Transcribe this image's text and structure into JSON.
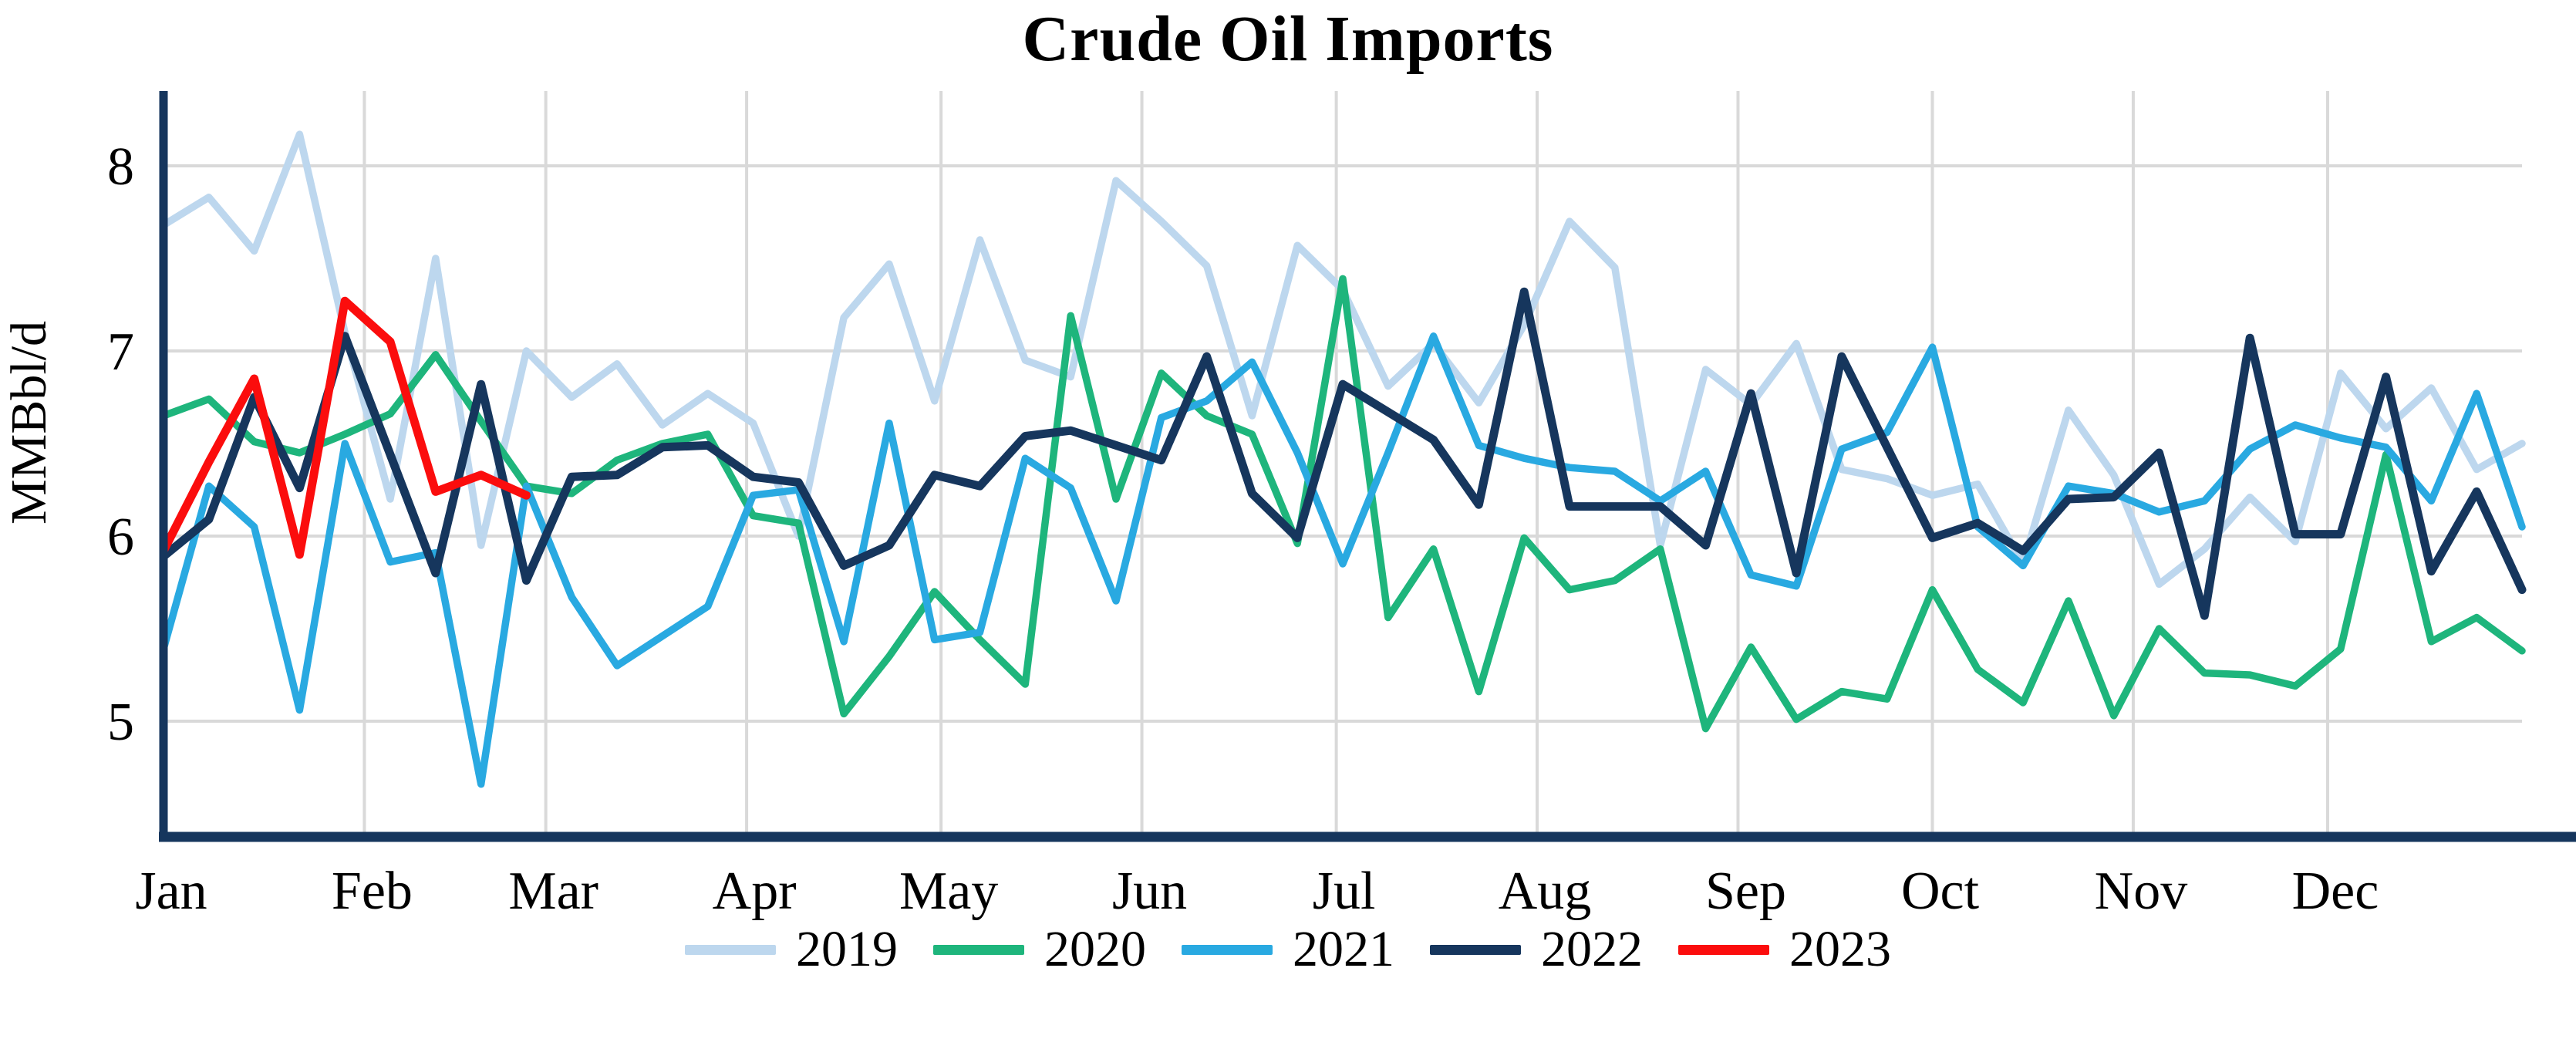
{
  "title": "Crude Oil Imports",
  "y_axis_label": "MMBbl/d",
  "colors": {
    "axis": "#16365d",
    "gridline": "#d9d9d9",
    "background": "#ffffff",
    "text": "#000000"
  },
  "chart_data": {
    "type": "line",
    "title": "Crude Oil Imports",
    "xlabel": "",
    "ylabel": "MMBbl/d",
    "x_tick_labels": [
      "Jan",
      "Feb",
      "Mar",
      "Apr",
      "May",
      "Jun",
      "Jul",
      "Aug",
      "Sep",
      "Oct",
      "Nov",
      "Dec"
    ],
    "y_ticks": [
      5,
      6,
      7,
      8
    ],
    "ylim": [
      4.37,
      8.42
    ],
    "x_unit": "weeks (one point per week, Jan 1 - Dec 31)",
    "grid": true,
    "legend_position": "bottom",
    "series": [
      {
        "name": "2019",
        "color": "#bdd7ee",
        "values": [
          7.68,
          7.83,
          7.54,
          8.17,
          7.1,
          6.2,
          7.5,
          5.95,
          7.0,
          6.75,
          6.93,
          6.6,
          6.77,
          6.61,
          6.0,
          7.18,
          7.47,
          6.73,
          7.6,
          6.95,
          6.86,
          7.92,
          7.7,
          7.46,
          6.65,
          7.57,
          7.33,
          6.81,
          7.04,
          6.72,
          7.14,
          7.7,
          7.45,
          5.95,
          6.9,
          6.71,
          7.04,
          6.36,
          6.31,
          6.22,
          6.28,
          5.85,
          6.68,
          6.33,
          5.74,
          5.93,
          6.21,
          5.97,
          6.88,
          6.58,
          6.8,
          6.36,
          6.5
        ]
      },
      {
        "name": "2020",
        "color": "#1eb57c",
        "values": [
          6.65,
          6.74,
          6.51,
          6.45,
          6.55,
          6.66,
          6.98,
          6.62,
          6.27,
          6.23,
          6.41,
          6.5,
          6.55,
          6.11,
          6.07,
          5.04,
          5.35,
          5.7,
          5.44,
          5.2,
          7.19,
          6.2,
          6.88,
          6.65,
          6.55,
          5.96,
          7.39,
          5.56,
          5.93,
          5.16,
          5.99,
          5.71,
          5.76,
          5.93,
          4.96,
          5.4,
          5.01,
          5.16,
          5.12,
          5.71,
          5.28,
          5.1,
          5.65,
          5.03,
          5.5,
          5.26,
          5.25,
          5.19,
          5.39,
          6.44,
          5.43,
          5.56,
          5.38
        ]
      },
      {
        "name": "2021",
        "color": "#29a9e1",
        "values": [
          5.39,
          6.27,
          6.05,
          5.06,
          6.5,
          5.86,
          5.91,
          4.66,
          6.27,
          5.67,
          5.3,
          5.46,
          5.62,
          6.22,
          6.25,
          5.43,
          6.61,
          5.44,
          5.48,
          6.42,
          6.26,
          5.65,
          6.64,
          6.73,
          6.94,
          6.45,
          5.85,
          6.45,
          7.08,
          6.49,
          6.42,
          6.37,
          6.35,
          6.19,
          6.35,
          5.79,
          5.73,
          6.47,
          6.56,
          7.02,
          6.05,
          5.84,
          6.27,
          6.23,
          6.13,
          6.19,
          6.47,
          6.6,
          6.53,
          6.48,
          6.19,
          6.77,
          6.05
        ]
      },
      {
        "name": "2022",
        "color": "#16365d",
        "values": [
          5.89,
          6.09,
          6.75,
          6.26,
          7.08,
          6.44,
          5.8,
          6.82,
          5.76,
          6.32,
          6.33,
          6.48,
          6.49,
          6.32,
          6.29,
          5.84,
          5.95,
          6.33,
          6.27,
          6.54,
          6.57,
          6.49,
          6.41,
          6.97,
          6.23,
          5.99,
          6.82,
          6.67,
          6.52,
          6.17,
          7.32,
          6.16,
          6.16,
          6.16,
          5.95,
          6.77,
          5.8,
          6.97,
          6.48,
          5.99,
          6.07,
          5.92,
          6.2,
          6.21,
          6.45,
          5.57,
          7.07,
          6.01,
          6.01,
          6.86,
          5.81,
          6.24,
          5.71
        ]
      },
      {
        "name": "2023",
        "color": "#fb0d0d",
        "values": [
          5.92,
          6.4,
          6.85,
          5.9,
          7.27,
          7.05,
          6.24,
          6.33,
          6.22
        ]
      }
    ]
  }
}
